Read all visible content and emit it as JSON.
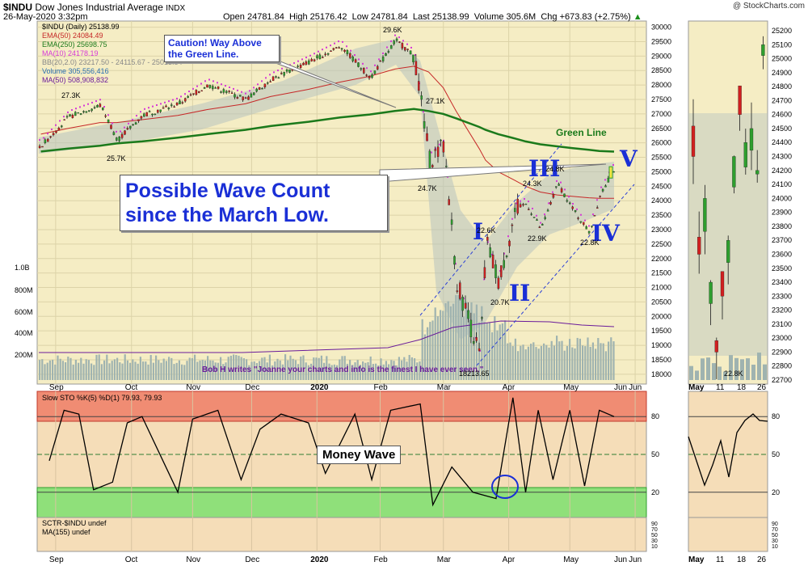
{
  "header": {
    "symbol": "$INDU",
    "name": "Dow Jones Industrial Average",
    "exchange": "INDX",
    "stamp": "@ StockCharts.com",
    "date": "26-May-2020 3:32pm",
    "open": "Open 24781.84",
    "high": "High 25176.42",
    "low": "Low 24781.84",
    "last": "Last 25138.99",
    "volume": "Volume 305.6M",
    "chg": "Chg +673.83 (+2.75%)",
    "chg_arrow": "▲"
  },
  "legend": [
    {
      "text": "$INDU (Daily) 25138.99",
      "color": "#000000"
    },
    {
      "text": "EMA(50) 24084.49",
      "color": "#c62828"
    },
    {
      "text": "EMA(250) 25698.75",
      "color": "#1b7a1b"
    },
    {
      "text": "MA(10) 24178.19",
      "color": "#d63ad6"
    },
    {
      "text": "BB(20,2.0) 23217.50 - 24115.67 - 25013.84",
      "color": "#888888"
    },
    {
      "text": "Volume 305,556,416",
      "color": "#2a6fb0"
    },
    {
      "text": "MA(50) 508,908,832",
      "color": "#6a1b9a"
    }
  ],
  "annotations": {
    "caution": "Caution! Way Above the Green Line.",
    "wave_title": "Possible Wave Count since the March Low.",
    "green_line": "Green Line",
    "money_wave": "Money Wave",
    "bob": "Bob H writes \"Joanne your charts and info is the finest I have ever seen.\"",
    "waves": [
      "I",
      "II",
      "III",
      "IV",
      "V"
    ],
    "point_labels": [
      "27.3K",
      "25.7K",
      "29.6K",
      "27.1K",
      "24.7K",
      "22.6K",
      "20.7K",
      "24.3K",
      "24.8K",
      "22.9K",
      "22.8K",
      "18213.65"
    ],
    "mini_label": "22.8K"
  },
  "lower_legend": {
    "sto": "Slow STO %K(5) %D(1) 79.93, 79.93",
    "sctr": "SCTR-$INDU undef",
    "sctr_ma": "MA(155) undef"
  },
  "colors": {
    "price_bg": "#f5edc4",
    "sto_overbought": "#f08c73",
    "sto_oversold": "#8fe07a",
    "sto_bg": "#f5ddb8",
    "ema250": "#1b7a1b",
    "ema50": "#c62828",
    "ma10": "#d63ad6",
    "wave_label": "#1a2fd6"
  },
  "chart_data": [
    {
      "type": "line",
      "title": "Dow Jones Industrial Average (Daily)",
      "x": [
        "2019-08-28",
        "2019-09-10",
        "2019-09-25",
        "2019-10-03",
        "2019-10-15",
        "2019-11-01",
        "2019-11-15",
        "2019-12-03",
        "2019-12-15",
        "2020-01-02",
        "2020-01-17",
        "2020-01-31",
        "2020-02-12",
        "2020-02-21",
        "2020-02-28",
        "2020-03-06",
        "2020-03-12",
        "2020-03-23",
        "2020-03-26",
        "2020-04-01",
        "2020-04-09",
        "2020-04-14",
        "2020-04-21",
        "2020-04-29",
        "2020-05-06",
        "2020-05-14",
        "2020-05-19",
        "2020-05-26"
      ],
      "series": [
        {
          "name": "$INDU",
          "values": [
            25900,
            26900,
            27300,
            26100,
            26950,
            27350,
            28000,
            27500,
            28200,
            28800,
            29350,
            28250,
            29550,
            28990,
            25400,
            25900,
            21200,
            18600,
            22550,
            21200,
            23700,
            23900,
            23000,
            24600,
            23700,
            22900,
            24200,
            25139
          ]
        },
        {
          "name": "EMA(250)",
          "values": [
            25700,
            25800,
            25900,
            25980,
            26050,
            26180,
            26300,
            26450,
            26580,
            26730,
            26880,
            26980,
            27100,
            27170,
            27100,
            27000,
            26850,
            26550,
            26450,
            26300,
            26150,
            26050,
            25950,
            25880,
            25820,
            25760,
            25720,
            25698
          ]
        },
        {
          "name": "EMA(50)",
          "values": [
            26300,
            26500,
            26700,
            26700,
            26800,
            26950,
            27150,
            27350,
            27600,
            27850,
            28100,
            28300,
            28550,
            28650,
            28450,
            27900,
            27100,
            25800,
            25400,
            25000,
            24700,
            24500,
            24300,
            24200,
            24150,
            24100,
            24080,
            24084
          ]
        }
      ],
      "annotated_points": [
        {
          "label": "27.3K",
          "x": "2019-09-12",
          "y": 27300
        },
        {
          "label": "25.7K",
          "x": "2019-10-08",
          "y": 25700
        },
        {
          "label": "29.6K",
          "x": "2020-02-12",
          "y": 29600
        },
        {
          "label": "27.1K",
          "x": "2020-03-04",
          "y": 27100
        },
        {
          "label": "24.7K",
          "x": "2020-02-28",
          "y": 24700
        },
        {
          "label": "22.6K",
          "x": "2020-03-26",
          "y": 22600
        },
        {
          "label": "20.7K",
          "x": "2020-04-01",
          "y": 20700
        },
        {
          "label": "24.3K",
          "x": "2020-04-17",
          "y": 24300
        },
        {
          "label": "24.8K",
          "x": "2020-04-29",
          "y": 24800
        },
        {
          "label": "22.9K",
          "x": "2020-04-21",
          "y": 22900
        },
        {
          "label": "22.8K",
          "x": "2020-05-14",
          "y": 22800
        },
        {
          "label": "18213.65",
          "x": "2020-03-23",
          "y": 18213.65
        }
      ],
      "ylim": [
        17800,
        30100
      ],
      "y_ticks": [
        18000,
        18500,
        19000,
        19500,
        20000,
        20500,
        21000,
        21500,
        22000,
        22500,
        23000,
        23500,
        24000,
        24500,
        25000,
        25500,
        26000,
        26500,
        27000,
        27500,
        28000,
        28500,
        29000,
        29500,
        30000
      ],
      "volume_ticks": [
        "1.0B",
        "800M",
        "600M",
        "400M",
        "200M"
      ],
      "x_ticks": [
        "Sep",
        "Oct",
        "Nov",
        "Dec",
        "2020",
        "Feb",
        "Mar",
        "Apr",
        "May",
        "Jun"
      ],
      "grid": true
    },
    {
      "type": "line",
      "title": "Slow STO %K(5) %D(1)",
      "x": [
        "2019-09-01",
        "2019-09-08",
        "2019-09-15",
        "2019-09-22",
        "2019-10-01",
        "2019-10-08",
        "2019-10-15",
        "2019-11-01",
        "2019-11-08",
        "2019-11-20",
        "2019-12-01",
        "2019-12-10",
        "2019-12-20",
        "2020-01-02",
        "2020-01-10",
        "2020-01-24",
        "2020-02-01",
        "2020-02-10",
        "2020-02-24",
        "2020-03-01",
        "2020-03-10",
        "2020-03-20",
        "2020-03-31",
        "2020-04-08",
        "2020-04-14",
        "2020-04-20",
        "2020-04-27",
        "2020-05-05",
        "2020-05-12",
        "2020-05-19",
        "2020-05-26"
      ],
      "series": [
        {
          "name": "%K",
          "values": [
            45,
            85,
            82,
            22,
            28,
            75,
            80,
            20,
            78,
            85,
            30,
            70,
            82,
            75,
            35,
            82,
            30,
            85,
            90,
            10,
            40,
            20,
            15,
            95,
            20,
            85,
            30,
            85,
            25,
            85,
            80
          ]
        }
      ],
      "ylim": [
        0,
        100
      ],
      "y_ticks": [
        80,
        50,
        20
      ],
      "overbought": 80,
      "oversold": 20
    },
    {
      "type": "line",
      "title": "SCTR-$INDU",
      "y_ticks": [
        90,
        70,
        50,
        30,
        10
      ]
    }
  ]
}
